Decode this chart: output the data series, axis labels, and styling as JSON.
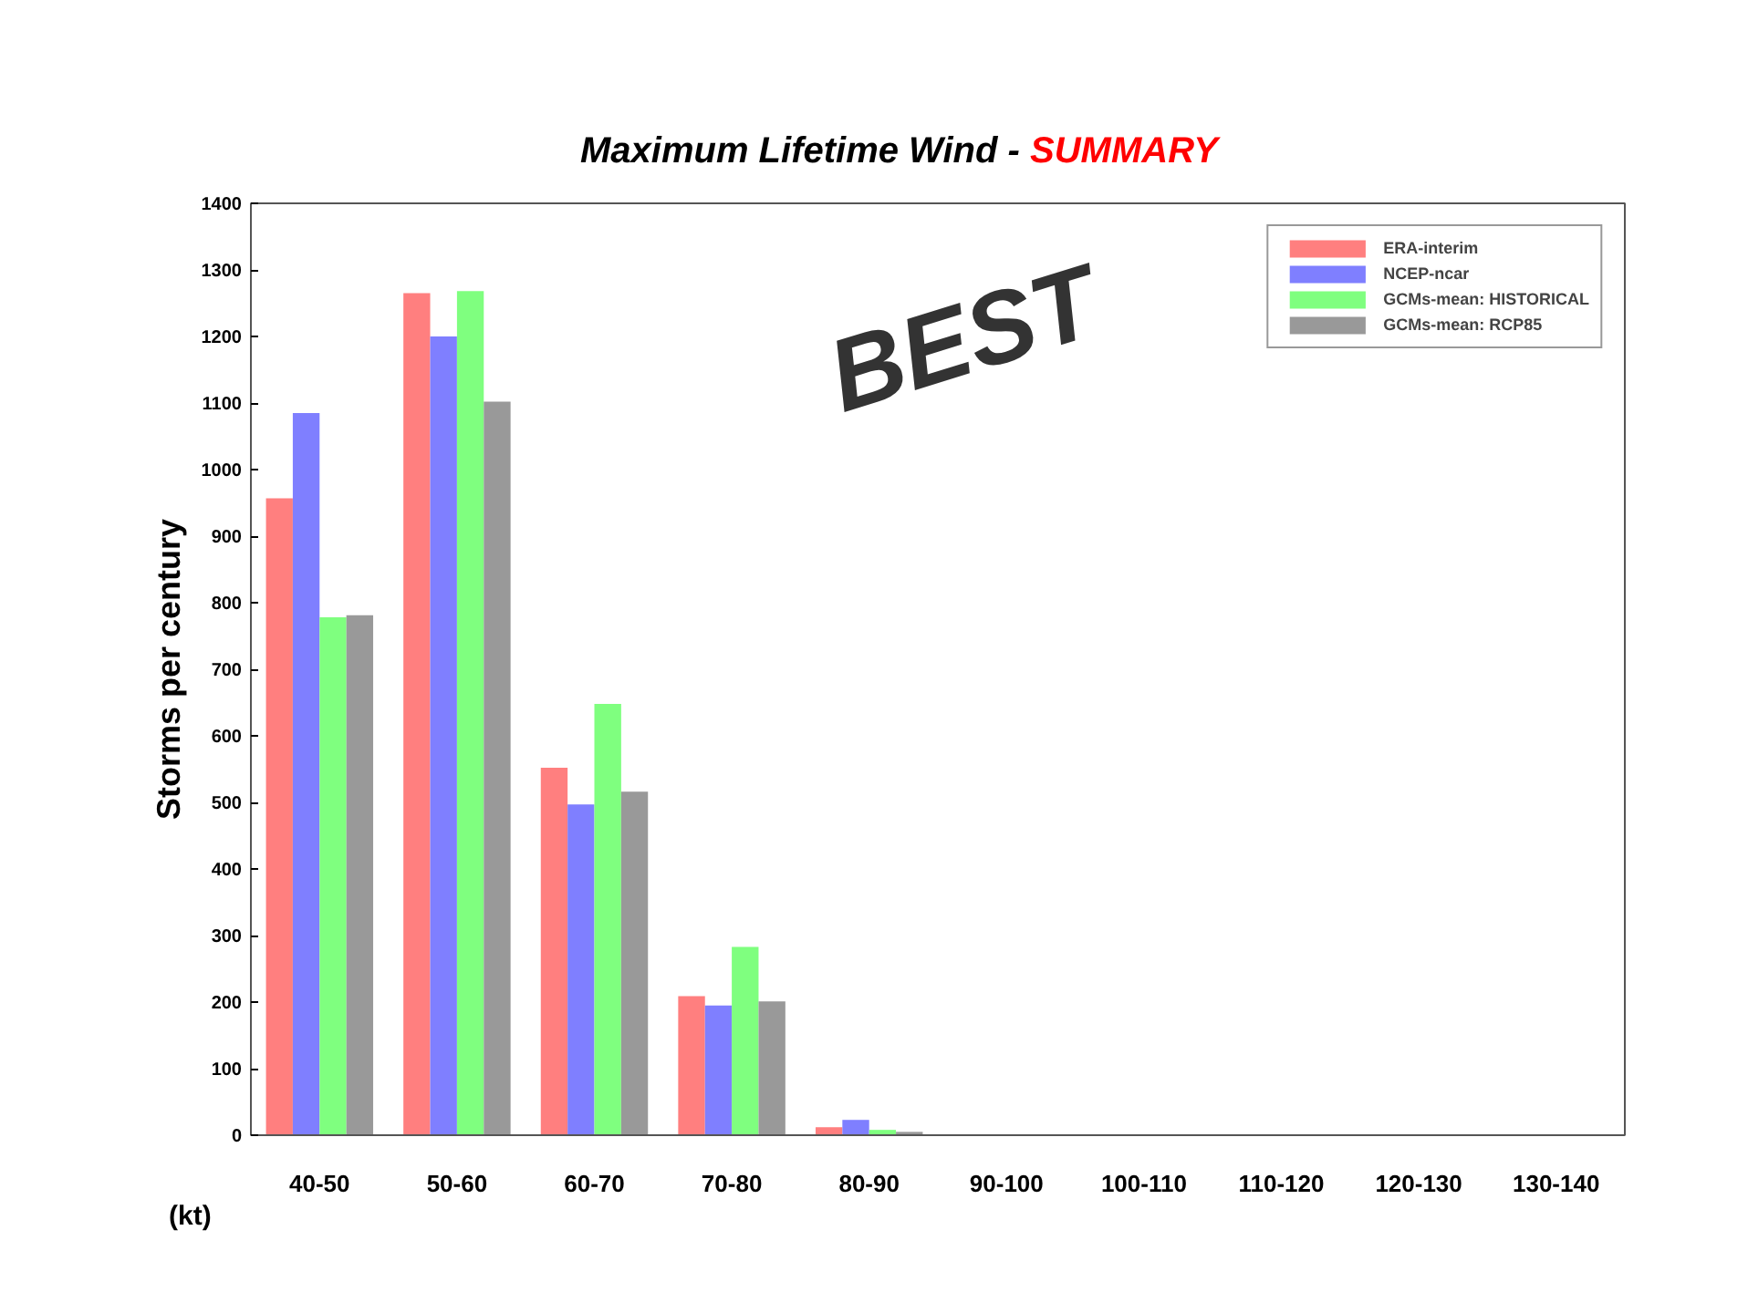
{
  "chart_data": {
    "type": "bar",
    "title": "Maximum Lifetime Wind -",
    "subtitle": "SUMMARY",
    "xlabel": "(kt)",
    "ylabel": "Storms per century",
    "categories": [
      "40-50",
      "50-60",
      "60-70",
      "70-80",
      "80-90",
      "90-100",
      "100-110",
      "110-120",
      "120-130",
      "130-140"
    ],
    "series": [
      {
        "name": "ERA-interim",
        "color": "#ff7f7f",
        "values": [
          957,
          1265,
          552,
          209,
          12,
          0,
          0,
          0,
          0,
          0
        ]
      },
      {
        "name": "NCEP-ncar",
        "color": "#7f7fff",
        "values": [
          1085,
          1200,
          497,
          195,
          23,
          0,
          0,
          0,
          0,
          0
        ]
      },
      {
        "name": "GCMs-mean: HISTORICAL",
        "color": "#7fff7f",
        "values": [
          778,
          1268,
          648,
          283,
          8,
          0,
          0,
          0,
          0,
          0
        ]
      },
      {
        "name": "GCMs-mean: RCP85",
        "color": "#999999",
        "values": [
          781,
          1102,
          516,
          201,
          5,
          0,
          0,
          0,
          0,
          0
        ]
      }
    ],
    "ylim": [
      0,
      1400
    ],
    "yticks": [
      0,
      100,
      200,
      300,
      400,
      500,
      600,
      700,
      800,
      900,
      1000,
      1100,
      1200,
      1300,
      1400
    ],
    "annotations": [
      "BEST"
    ],
    "grid": false,
    "legend": "top right"
  }
}
